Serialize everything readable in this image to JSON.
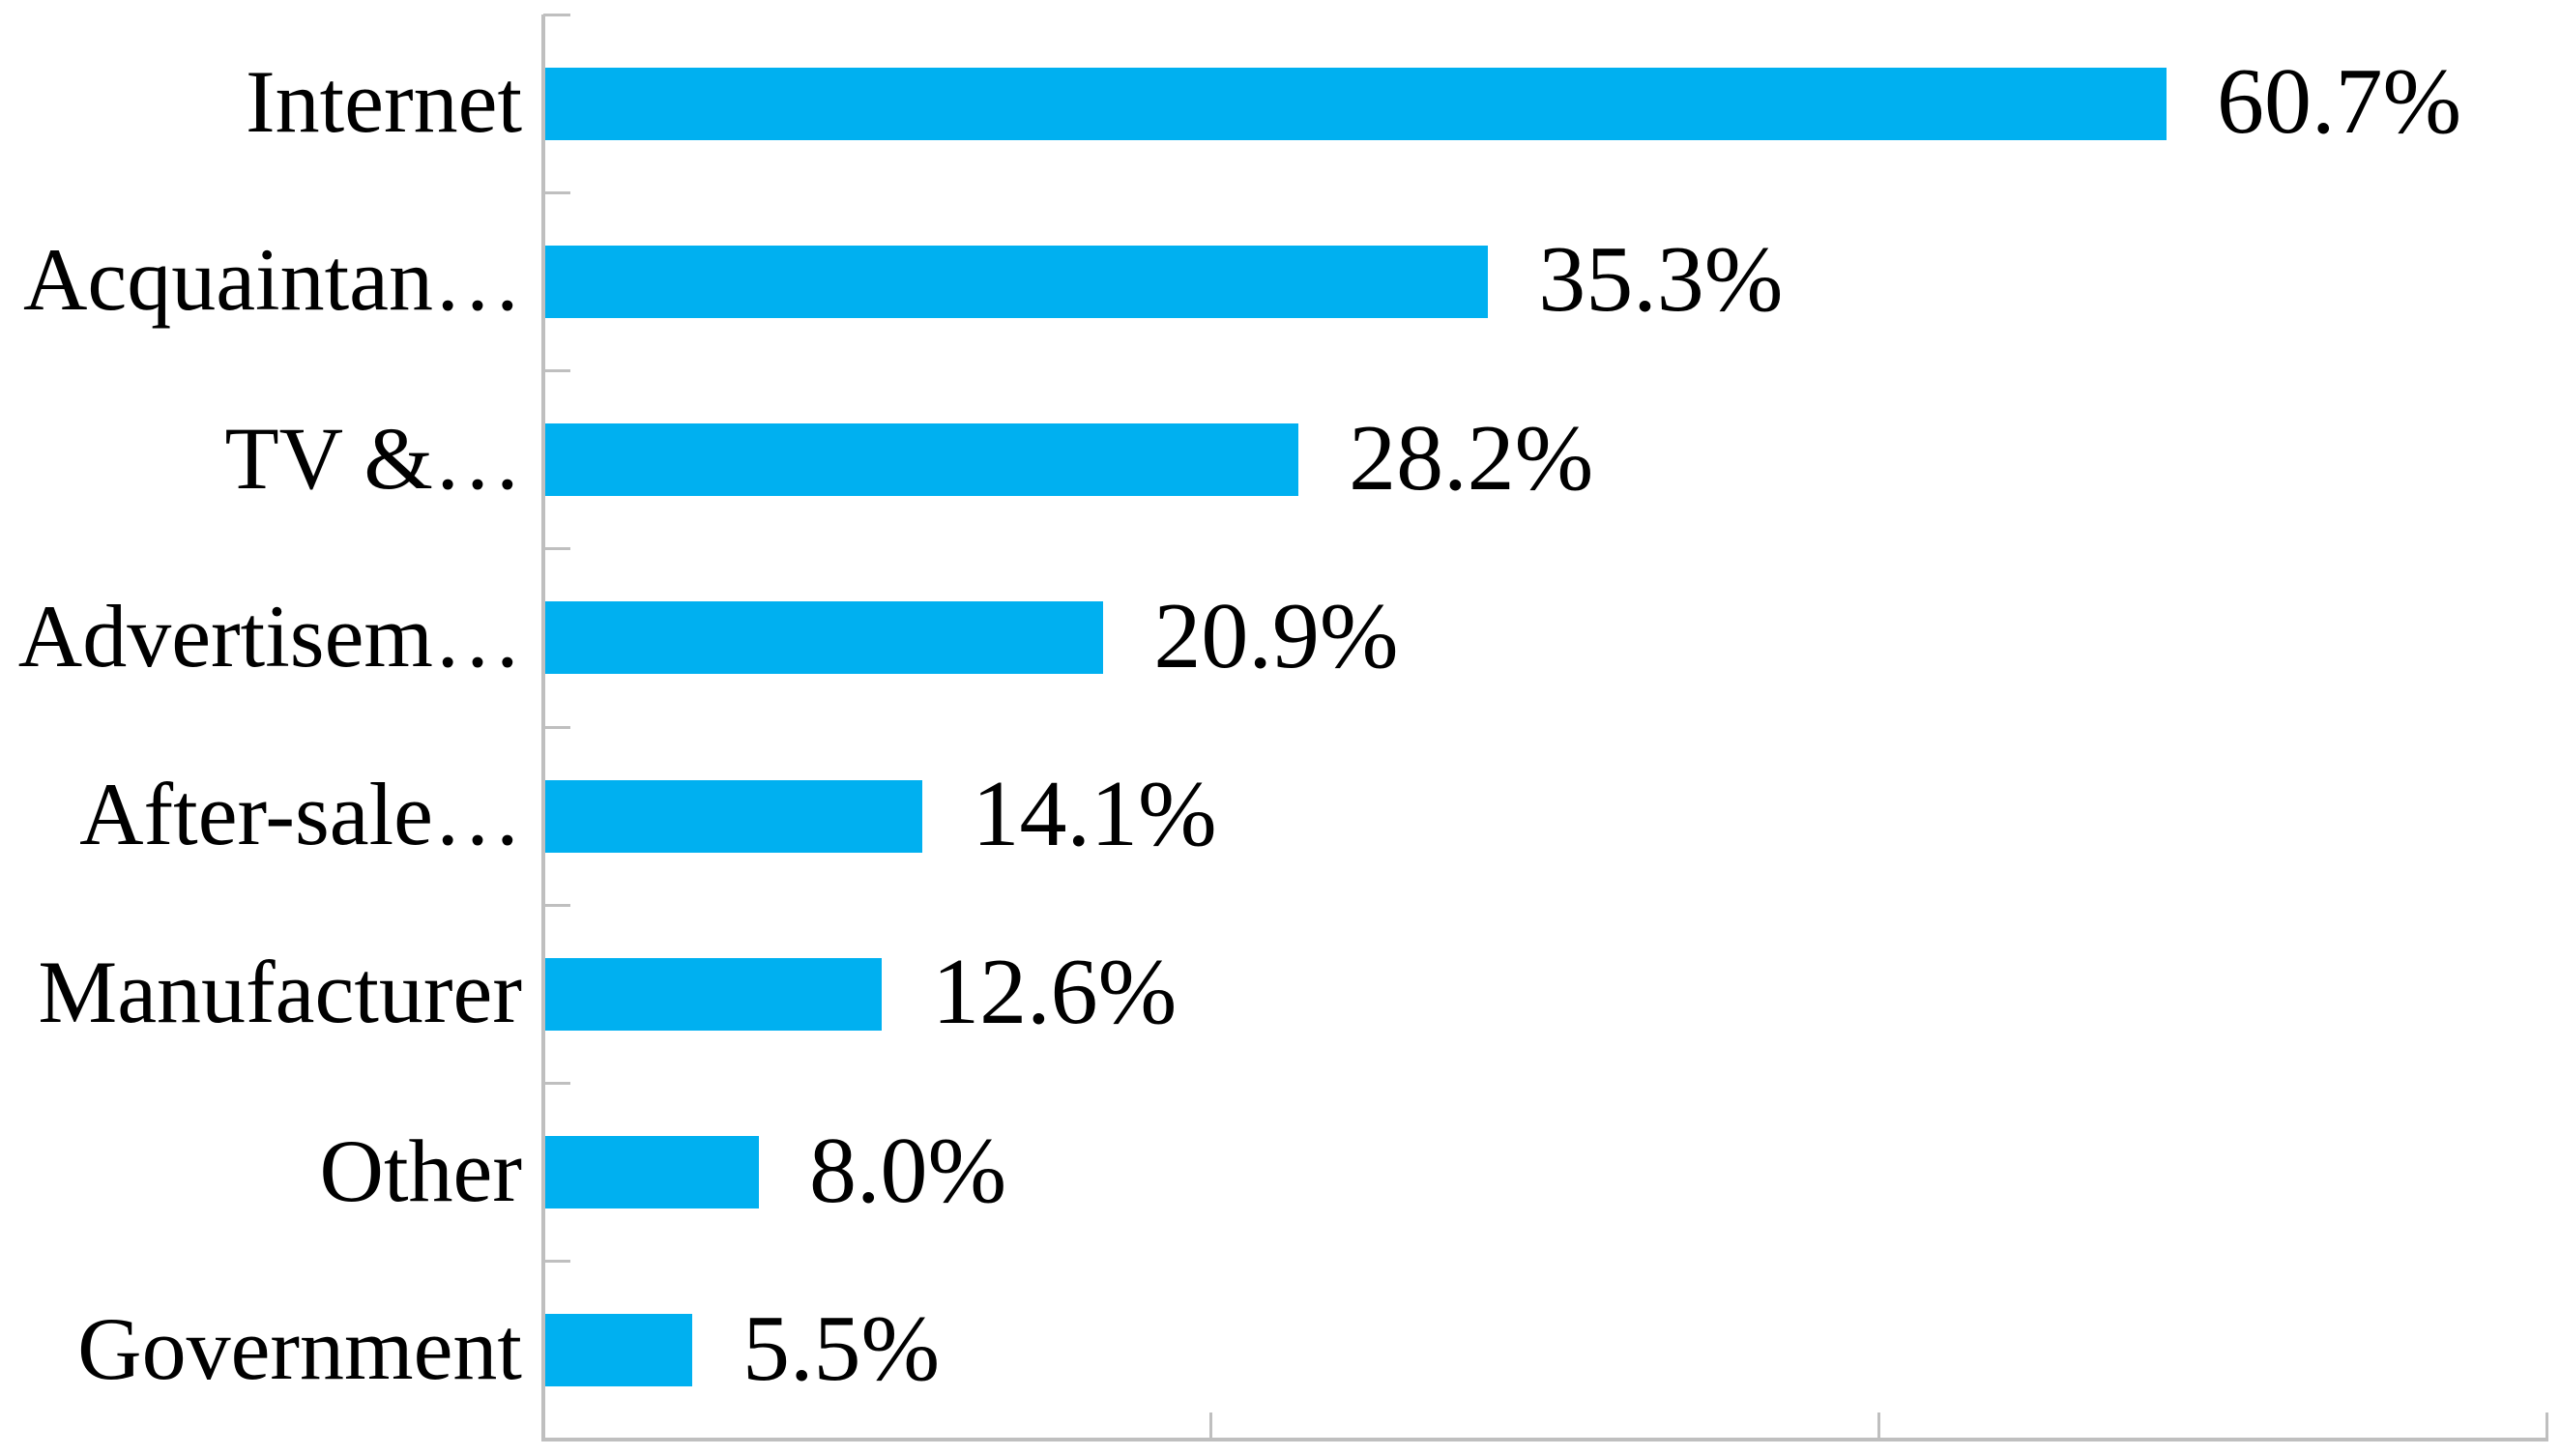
{
  "chart_data": {
    "type": "bar",
    "orientation": "horizontal",
    "title": "",
    "xlabel": "",
    "ylabel": "",
    "categories": [
      "Internet",
      "Acquaintan…",
      "TV &…",
      "Advertisem…",
      "After-sale…",
      "Manufacturer",
      "Other",
      "Government"
    ],
    "values": [
      60.7,
      35.3,
      28.2,
      20.9,
      14.1,
      12.6,
      8.0,
      5.5
    ],
    "value_labels": [
      "60.7%",
      "35.3%",
      "28.2%",
      "20.9%",
      "14.1%",
      "12.6%",
      "8.0%",
      "5.5%"
    ],
    "xlim": [
      0,
      75
    ],
    "x_major_unit": 25,
    "grid": false,
    "legend": false,
    "data_labels": "outside-end",
    "colors": {
      "bar": "#00b0f0",
      "axis": "#bfbfbf",
      "text": "#000000",
      "background": "#ffffff"
    }
  }
}
